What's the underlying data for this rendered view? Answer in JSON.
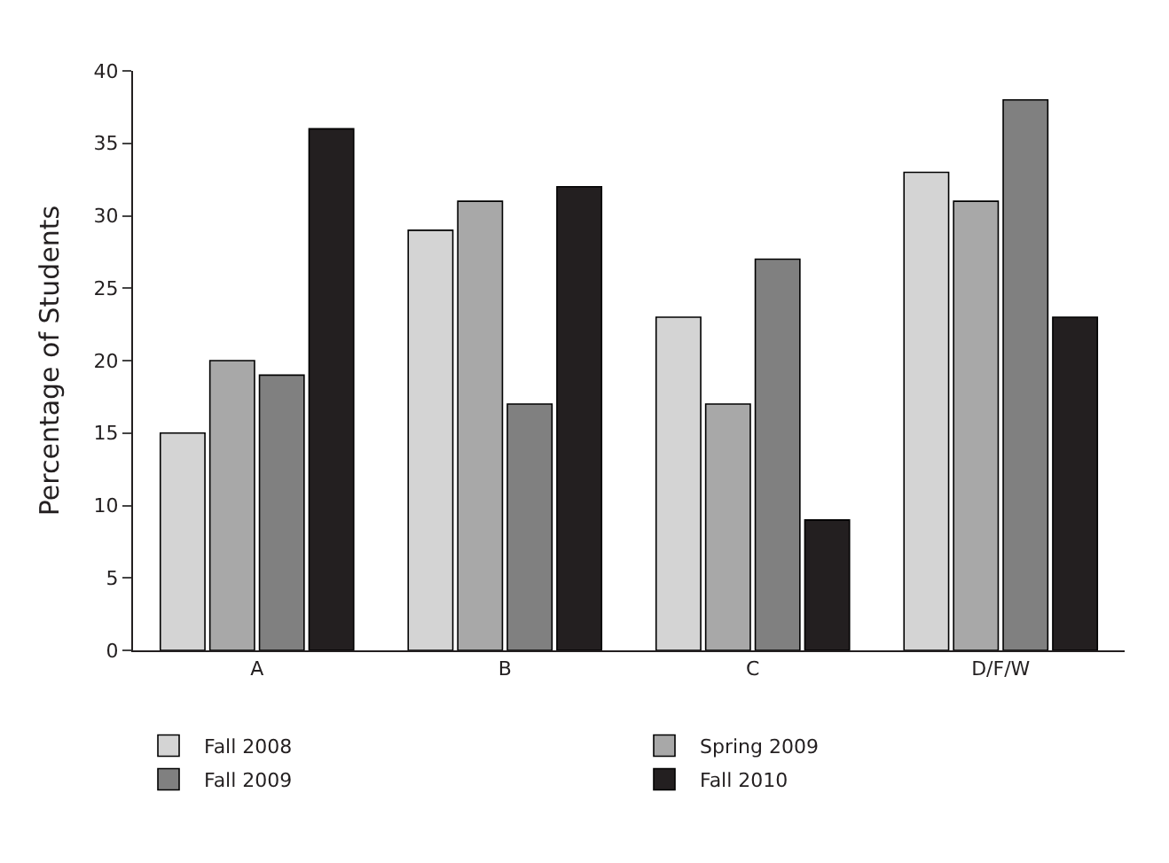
{
  "chart_data": {
    "type": "bar",
    "ylabel": "Percentage of Students",
    "categories": [
      "A",
      "B",
      "C",
      "D/F/W"
    ],
    "series": [
      {
        "name": "Fall 2008",
        "color": "#d4d4d4",
        "values": [
          15,
          29,
          23,
          33
        ]
      },
      {
        "name": "Spring 2009",
        "color": "#a8a8a8",
        "values": [
          20,
          31,
          17,
          31
        ]
      },
      {
        "name": "Fall 2009",
        "color": "#808080",
        "values": [
          19,
          17,
          27,
          38
        ]
      },
      {
        "name": "Fall 2010",
        "color": "#231f20",
        "values": [
          36,
          32,
          9,
          23
        ]
      }
    ],
    "ylim": [
      0,
      40
    ],
    "yticks": [
      0,
      5,
      10,
      15,
      20,
      25,
      30,
      35,
      40
    ],
    "legend": "bottom"
  }
}
